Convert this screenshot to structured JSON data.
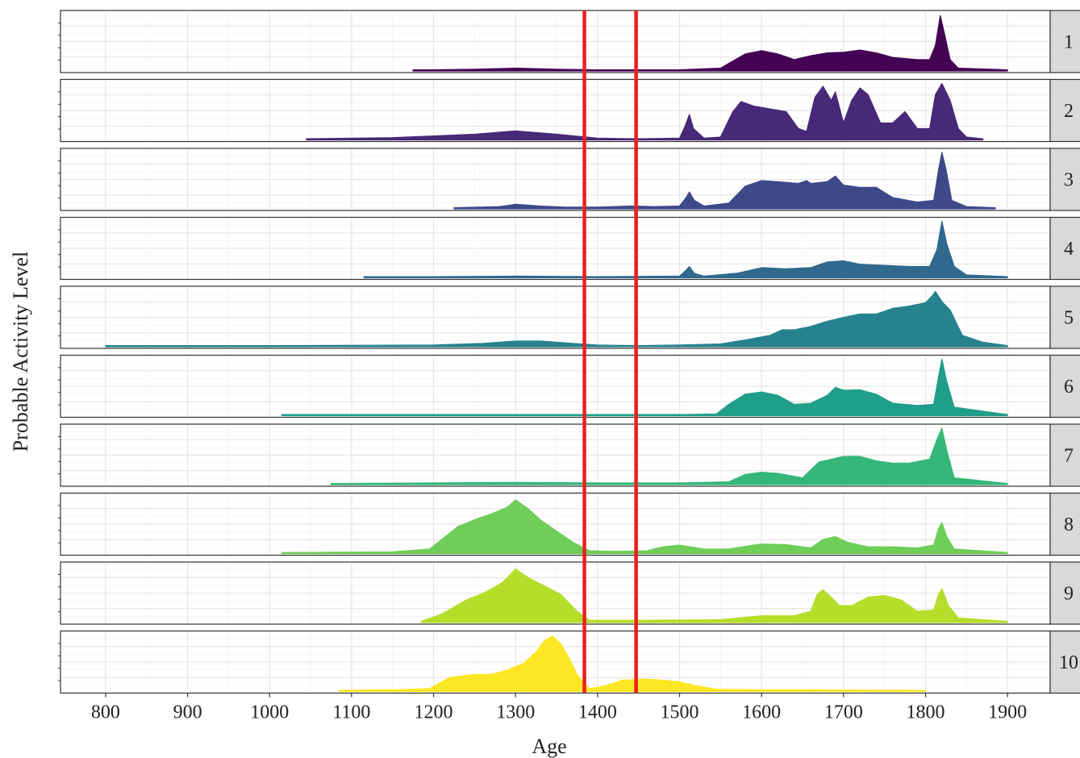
{
  "chart_data": {
    "type": "area",
    "xlabel": "Age",
    "ylabel": "Probable Activity Level",
    "xlim": [
      745,
      1952
    ],
    "x_ticks": [
      "800",
      "900",
      "1000",
      "1100",
      "1200",
      "1300",
      "1400",
      "1500",
      "1600",
      "1700",
      "1800",
      "1900"
    ],
    "grid": true,
    "facets": "stacked rows, strip labels on right",
    "reference_lines": [
      1384,
      1447
    ],
    "reference_line_color": "#e8201f",
    "series": [
      {
        "label": "1",
        "color": "#440154",
        "points": [
          [
            1175,
            0.02
          ],
          [
            1200,
            0.02
          ],
          [
            1250,
            0.03
          ],
          [
            1300,
            0.05
          ],
          [
            1350,
            0.03
          ],
          [
            1400,
            0.02
          ],
          [
            1500,
            0.02
          ],
          [
            1550,
            0.05
          ],
          [
            1580,
            0.3
          ],
          [
            1600,
            0.36
          ],
          [
            1620,
            0.3
          ],
          [
            1640,
            0.2
          ],
          [
            1660,
            0.27
          ],
          [
            1680,
            0.32
          ],
          [
            1700,
            0.33
          ],
          [
            1720,
            0.37
          ],
          [
            1740,
            0.32
          ],
          [
            1760,
            0.24
          ],
          [
            1790,
            0.2
          ],
          [
            1805,
            0.2
          ],
          [
            1812,
            0.45
          ],
          [
            1818,
            0.98
          ],
          [
            1824,
            0.6
          ],
          [
            1830,
            0.2
          ],
          [
            1840,
            0.05
          ],
          [
            1900,
            0.02
          ]
        ]
      },
      {
        "label": "2",
        "color": "#482878",
        "points": [
          [
            1045,
            0.02
          ],
          [
            1150,
            0.04
          ],
          [
            1250,
            0.1
          ],
          [
            1300,
            0.16
          ],
          [
            1350,
            0.1
          ],
          [
            1400,
            0.03
          ],
          [
            1450,
            0.02
          ],
          [
            1500,
            0.03
          ],
          [
            1507,
            0.25
          ],
          [
            1512,
            0.45
          ],
          [
            1517,
            0.2
          ],
          [
            1530,
            0.03
          ],
          [
            1550,
            0.05
          ],
          [
            1565,
            0.5
          ],
          [
            1575,
            0.68
          ],
          [
            1590,
            0.6
          ],
          [
            1610,
            0.55
          ],
          [
            1630,
            0.5
          ],
          [
            1645,
            0.2
          ],
          [
            1655,
            0.15
          ],
          [
            1665,
            0.75
          ],
          [
            1675,
            0.95
          ],
          [
            1685,
            0.7
          ],
          [
            1690,
            0.85
          ],
          [
            1700,
            0.3
          ],
          [
            1710,
            0.7
          ],
          [
            1720,
            0.92
          ],
          [
            1730,
            0.8
          ],
          [
            1745,
            0.3
          ],
          [
            1760,
            0.3
          ],
          [
            1775,
            0.5
          ],
          [
            1790,
            0.2
          ],
          [
            1805,
            0.2
          ],
          [
            1812,
            0.8
          ],
          [
            1820,
            1
          ],
          [
            1830,
            0.7
          ],
          [
            1840,
            0.2
          ],
          [
            1850,
            0.05
          ],
          [
            1870,
            0.02
          ]
        ]
      },
      {
        "label": "3",
        "color": "#3e4989",
        "points": [
          [
            1225,
            0.02
          ],
          [
            1280,
            0.04
          ],
          [
            1300,
            0.08
          ],
          [
            1330,
            0.05
          ],
          [
            1360,
            0.03
          ],
          [
            1400,
            0.03
          ],
          [
            1440,
            0.05
          ],
          [
            1470,
            0.04
          ],
          [
            1500,
            0.05
          ],
          [
            1508,
            0.2
          ],
          [
            1512,
            0.3
          ],
          [
            1518,
            0.15
          ],
          [
            1530,
            0.05
          ],
          [
            1560,
            0.1
          ],
          [
            1580,
            0.4
          ],
          [
            1600,
            0.5
          ],
          [
            1620,
            0.48
          ],
          [
            1645,
            0.45
          ],
          [
            1655,
            0.5
          ],
          [
            1660,
            0.45
          ],
          [
            1680,
            0.48
          ],
          [
            1690,
            0.58
          ],
          [
            1700,
            0.42
          ],
          [
            1720,
            0.38
          ],
          [
            1740,
            0.38
          ],
          [
            1760,
            0.2
          ],
          [
            1790,
            0.12
          ],
          [
            1810,
            0.15
          ],
          [
            1816,
            0.7
          ],
          [
            1820,
            1
          ],
          [
            1825,
            0.7
          ],
          [
            1832,
            0.15
          ],
          [
            1850,
            0.04
          ],
          [
            1885,
            0.02
          ]
        ]
      },
      {
        "label": "4",
        "color": "#31688e",
        "points": [
          [
            1115,
            0.02
          ],
          [
            1200,
            0.02
          ],
          [
            1300,
            0.03
          ],
          [
            1400,
            0.02
          ],
          [
            1500,
            0.03
          ],
          [
            1507,
            0.12
          ],
          [
            1512,
            0.2
          ],
          [
            1518,
            0.08
          ],
          [
            1530,
            0.03
          ],
          [
            1570,
            0.08
          ],
          [
            1600,
            0.18
          ],
          [
            1630,
            0.16
          ],
          [
            1660,
            0.18
          ],
          [
            1680,
            0.28
          ],
          [
            1700,
            0.3
          ],
          [
            1720,
            0.24
          ],
          [
            1750,
            0.22
          ],
          [
            1780,
            0.2
          ],
          [
            1805,
            0.2
          ],
          [
            1814,
            0.5
          ],
          [
            1820,
            1
          ],
          [
            1826,
            0.6
          ],
          [
            1835,
            0.2
          ],
          [
            1850,
            0.05
          ],
          [
            1900,
            0.02
          ]
        ]
      },
      {
        "label": "5",
        "color": "#26828e",
        "points": [
          [
            800,
            0.02
          ],
          [
            1000,
            0.02
          ],
          [
            1200,
            0.03
          ],
          [
            1260,
            0.06
          ],
          [
            1300,
            0.1
          ],
          [
            1330,
            0.1
          ],
          [
            1370,
            0.06
          ],
          [
            1400,
            0.03
          ],
          [
            1450,
            0.02
          ],
          [
            1500,
            0.03
          ],
          [
            1550,
            0.05
          ],
          [
            1580,
            0.12
          ],
          [
            1610,
            0.2
          ],
          [
            1625,
            0.3
          ],
          [
            1640,
            0.3
          ],
          [
            1660,
            0.36
          ],
          [
            1680,
            0.45
          ],
          [
            1700,
            0.52
          ],
          [
            1720,
            0.58
          ],
          [
            1740,
            0.58
          ],
          [
            1760,
            0.68
          ],
          [
            1780,
            0.72
          ],
          [
            1800,
            0.78
          ],
          [
            1808,
            0.9
          ],
          [
            1812,
            0.98
          ],
          [
            1820,
            0.8
          ],
          [
            1830,
            0.65
          ],
          [
            1845,
            0.2
          ],
          [
            1870,
            0.08
          ],
          [
            1900,
            0.02
          ]
        ]
      },
      {
        "label": "6",
        "color": "#1f9e89",
        "points": [
          [
            1015,
            0.02
          ],
          [
            1200,
            0.02
          ],
          [
            1400,
            0.02
          ],
          [
            1500,
            0.02
          ],
          [
            1545,
            0.03
          ],
          [
            1560,
            0.2
          ],
          [
            1580,
            0.38
          ],
          [
            1600,
            0.42
          ],
          [
            1620,
            0.36
          ],
          [
            1640,
            0.2
          ],
          [
            1660,
            0.22
          ],
          [
            1680,
            0.36
          ],
          [
            1690,
            0.5
          ],
          [
            1700,
            0.45
          ],
          [
            1720,
            0.46
          ],
          [
            1740,
            0.38
          ],
          [
            1760,
            0.22
          ],
          [
            1790,
            0.18
          ],
          [
            1810,
            0.2
          ],
          [
            1816,
            0.7
          ],
          [
            1820,
            1
          ],
          [
            1826,
            0.6
          ],
          [
            1835,
            0.15
          ],
          [
            1900,
            0.02
          ]
        ]
      },
      {
        "label": "7",
        "color": "#35b779",
        "points": [
          [
            1075,
            0.02
          ],
          [
            1200,
            0.03
          ],
          [
            1300,
            0.04
          ],
          [
            1400,
            0.03
          ],
          [
            1500,
            0.03
          ],
          [
            1560,
            0.05
          ],
          [
            1580,
            0.18
          ],
          [
            1600,
            0.22
          ],
          [
            1620,
            0.2
          ],
          [
            1650,
            0.12
          ],
          [
            1670,
            0.4
          ],
          [
            1700,
            0.5
          ],
          [
            1720,
            0.5
          ],
          [
            1740,
            0.42
          ],
          [
            1760,
            0.38
          ],
          [
            1780,
            0.38
          ],
          [
            1805,
            0.45
          ],
          [
            1814,
            0.8
          ],
          [
            1820,
            1
          ],
          [
            1826,
            0.6
          ],
          [
            1835,
            0.12
          ],
          [
            1900,
            0.02
          ]
        ]
      },
      {
        "label": "8",
        "color": "#6ece58",
        "points": [
          [
            1015,
            0.02
          ],
          [
            1150,
            0.03
          ],
          [
            1195,
            0.08
          ],
          [
            1210,
            0.25
          ],
          [
            1230,
            0.48
          ],
          [
            1250,
            0.6
          ],
          [
            1270,
            0.7
          ],
          [
            1290,
            0.82
          ],
          [
            1300,
            0.95
          ],
          [
            1315,
            0.8
          ],
          [
            1330,
            0.6
          ],
          [
            1350,
            0.4
          ],
          [
            1370,
            0.2
          ],
          [
            1390,
            0.05
          ],
          [
            1420,
            0.04
          ],
          [
            1460,
            0.05
          ],
          [
            1480,
            0.12
          ],
          [
            1500,
            0.15
          ],
          [
            1530,
            0.08
          ],
          [
            1560,
            0.08
          ],
          [
            1590,
            0.15
          ],
          [
            1600,
            0.17
          ],
          [
            1630,
            0.16
          ],
          [
            1660,
            0.1
          ],
          [
            1675,
            0.25
          ],
          [
            1690,
            0.3
          ],
          [
            1705,
            0.2
          ],
          [
            1730,
            0.12
          ],
          [
            1760,
            0.12
          ],
          [
            1790,
            0.1
          ],
          [
            1810,
            0.15
          ],
          [
            1816,
            0.45
          ],
          [
            1820,
            0.55
          ],
          [
            1826,
            0.3
          ],
          [
            1835,
            0.08
          ],
          [
            1900,
            0.02
          ]
        ]
      },
      {
        "label": "9",
        "color": "#b5de2b",
        "points": [
          [
            1185,
            0.02
          ],
          [
            1210,
            0.15
          ],
          [
            1240,
            0.4
          ],
          [
            1265,
            0.55
          ],
          [
            1285,
            0.72
          ],
          [
            1300,
            0.95
          ],
          [
            1315,
            0.8
          ],
          [
            1335,
            0.65
          ],
          [
            1355,
            0.5
          ],
          [
            1375,
            0.2
          ],
          [
            1390,
            0.04
          ],
          [
            1450,
            0.04
          ],
          [
            1550,
            0.05
          ],
          [
            1600,
            0.12
          ],
          [
            1640,
            0.12
          ],
          [
            1660,
            0.2
          ],
          [
            1668,
            0.5
          ],
          [
            1675,
            0.58
          ],
          [
            1685,
            0.45
          ],
          [
            1695,
            0.3
          ],
          [
            1710,
            0.3
          ],
          [
            1730,
            0.45
          ],
          [
            1750,
            0.48
          ],
          [
            1770,
            0.4
          ],
          [
            1790,
            0.2
          ],
          [
            1810,
            0.22
          ],
          [
            1816,
            0.5
          ],
          [
            1820,
            0.6
          ],
          [
            1828,
            0.3
          ],
          [
            1840,
            0.08
          ],
          [
            1900,
            0.02
          ]
        ]
      },
      {
        "label": "10",
        "color": "#fde725",
        "points": [
          [
            1085,
            0.02
          ],
          [
            1150,
            0.03
          ],
          [
            1195,
            0.05
          ],
          [
            1220,
            0.25
          ],
          [
            1250,
            0.3
          ],
          [
            1270,
            0.3
          ],
          [
            1290,
            0.38
          ],
          [
            1310,
            0.5
          ],
          [
            1325,
            0.7
          ],
          [
            1335,
            0.9
          ],
          [
            1345,
            0.98
          ],
          [
            1355,
            0.85
          ],
          [
            1365,
            0.6
          ],
          [
            1375,
            0.3
          ],
          [
            1390,
            0.05
          ],
          [
            1410,
            0.1
          ],
          [
            1430,
            0.2
          ],
          [
            1460,
            0.22
          ],
          [
            1480,
            0.2
          ],
          [
            1500,
            0.17
          ],
          [
            1520,
            0.1
          ],
          [
            1545,
            0.04
          ],
          [
            1600,
            0.03
          ],
          [
            1800,
            0.02
          ]
        ]
      }
    ]
  }
}
